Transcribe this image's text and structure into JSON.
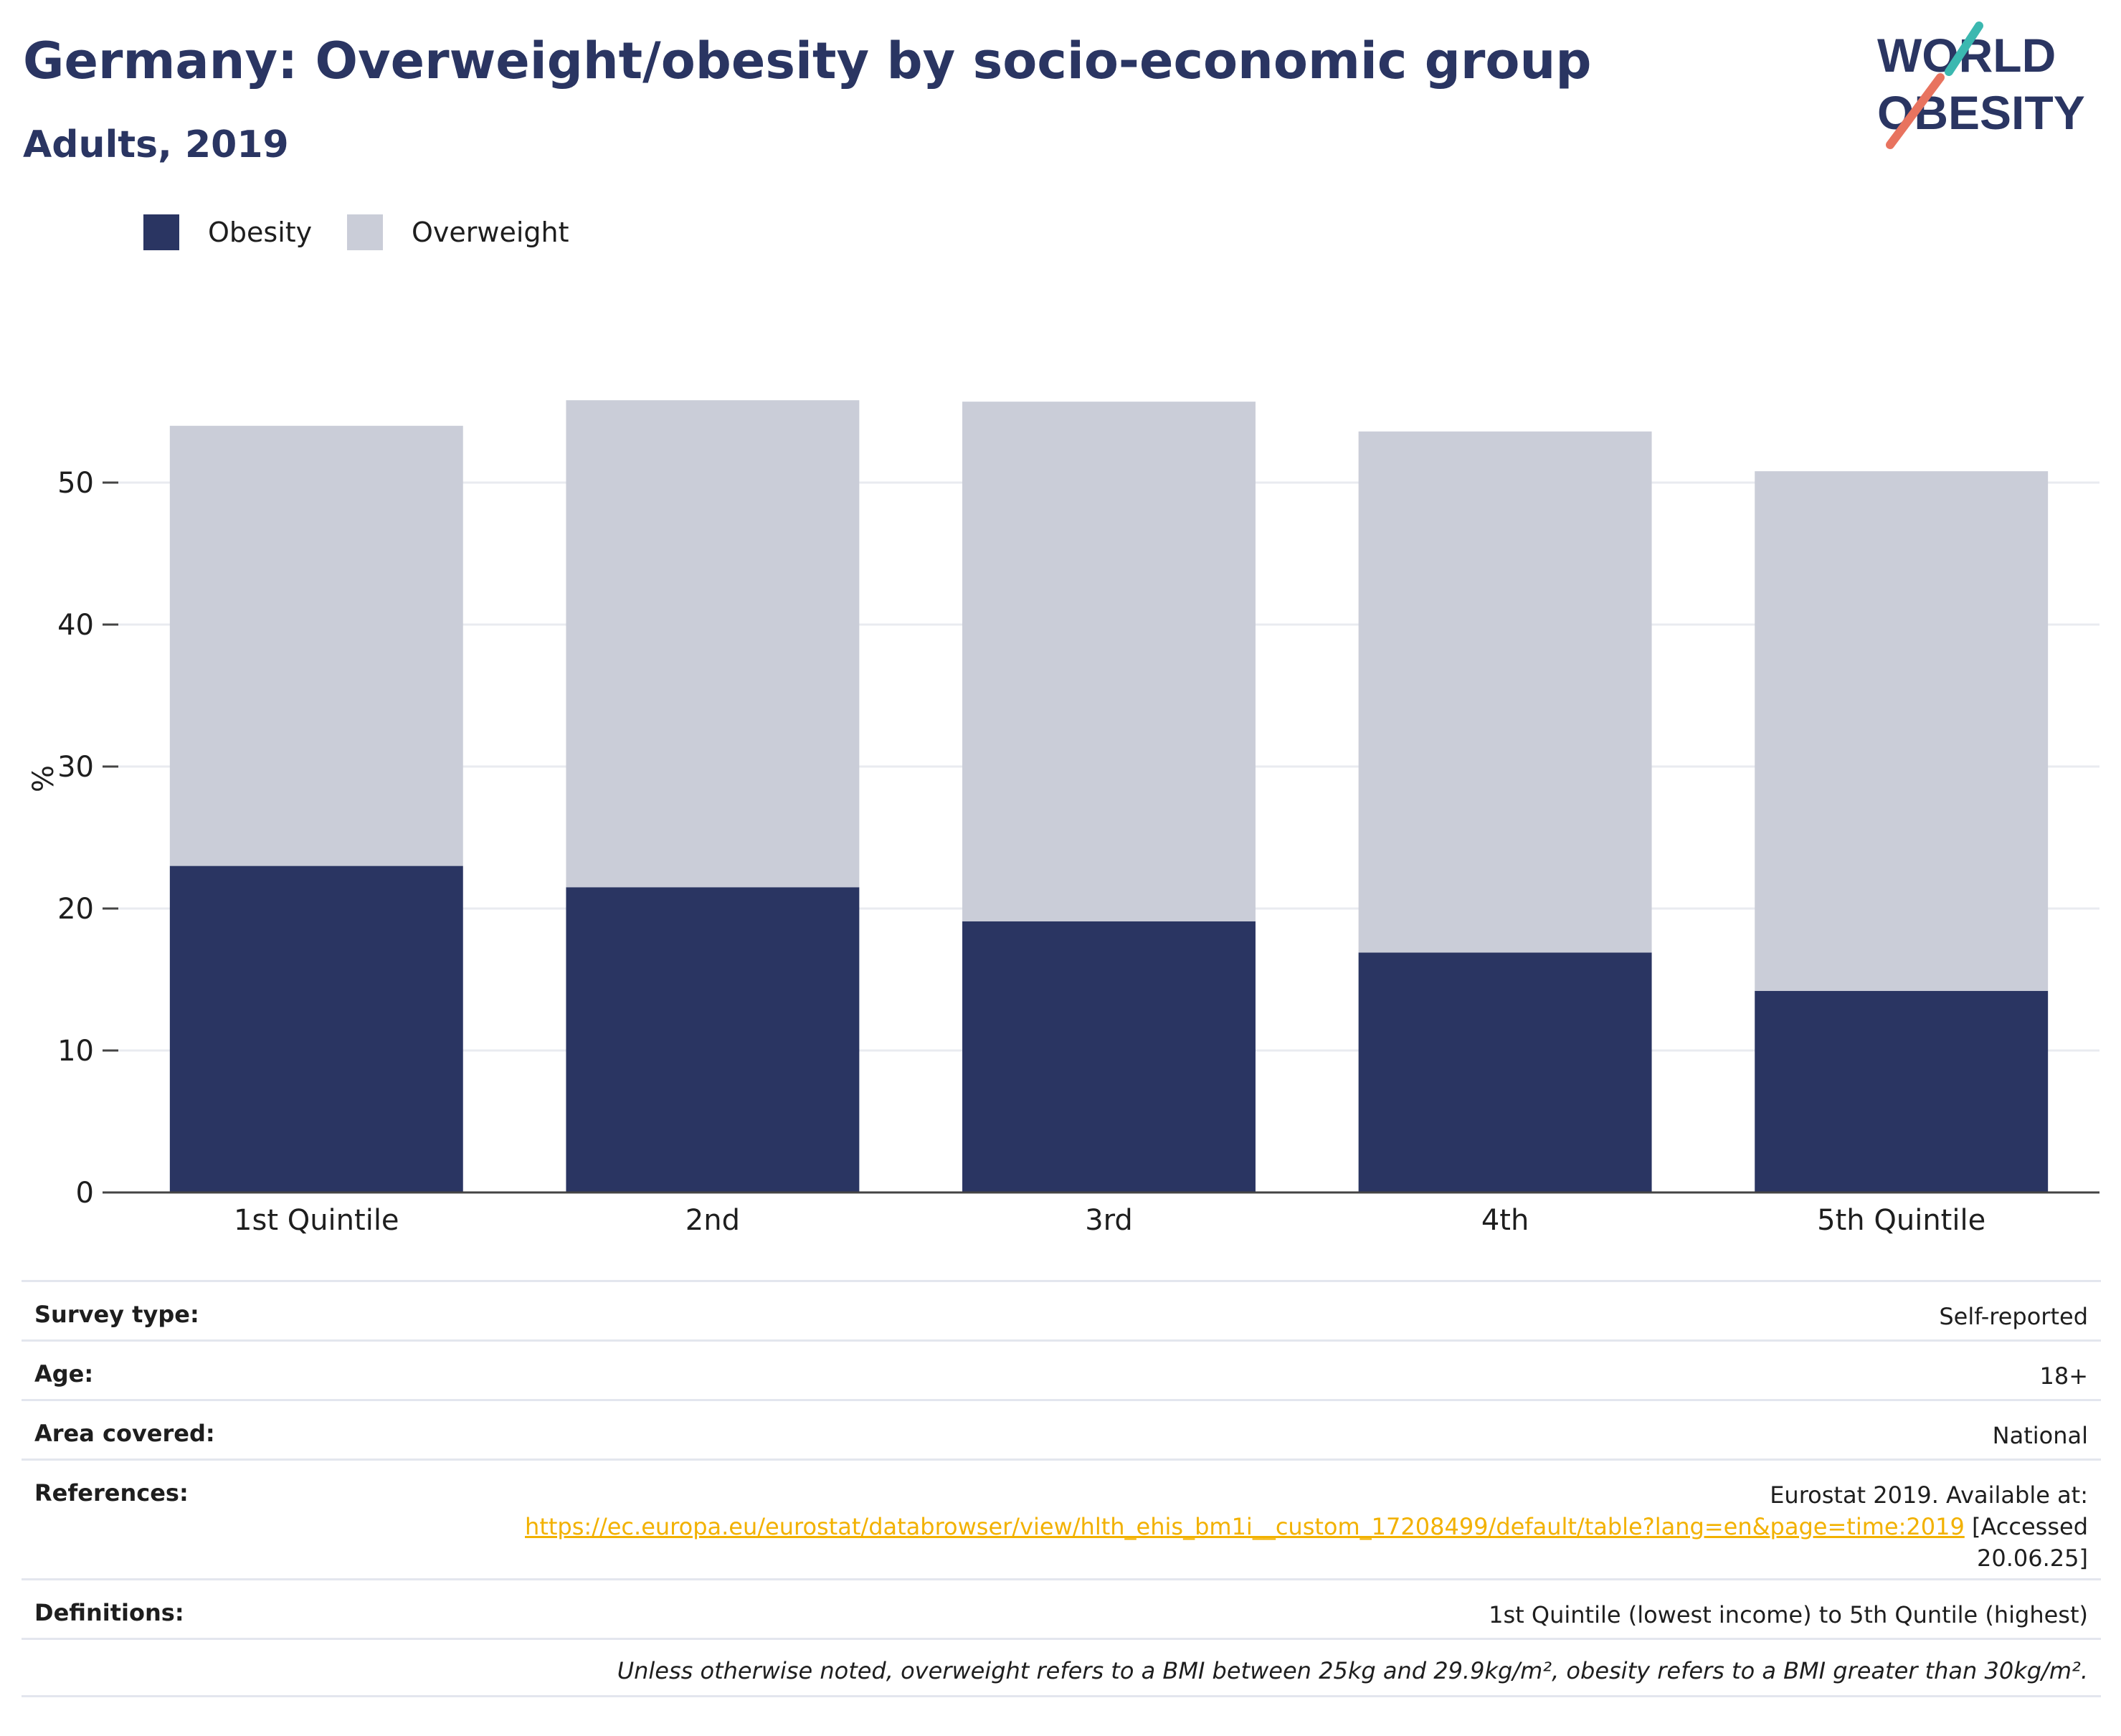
{
  "header": {
    "title": "Germany: Overweight/obesity by socio-economic group",
    "subtitle": "Adults, 2019"
  },
  "logo": {
    "line1": "WORLD",
    "line2": "OBESITY",
    "accent_teal": "#3bb8b0",
    "accent_coral": "#e8735f"
  },
  "colors": {
    "obesity": "#2a3562",
    "overweight": "#cacdd8",
    "link": "#f2b100",
    "grid": "#e9ebf0"
  },
  "chart_data": {
    "type": "bar",
    "stacked": true,
    "categories": [
      "1st Quintile",
      "2nd",
      "3rd",
      "4th",
      "5th Quintile"
    ],
    "series": [
      {
        "name": "Obesity",
        "color": "#2a3562",
        "values": [
          23.0,
          21.5,
          19.1,
          16.9,
          14.2
        ]
      },
      {
        "name": "Overweight",
        "color": "#cacdd8",
        "values": [
          31.0,
          34.3,
          36.6,
          36.7,
          36.6
        ]
      }
    ],
    "ylabel": "%",
    "xlabel": "",
    "ylim": [
      0,
      60
    ],
    "yticks": [
      0,
      10,
      20,
      30,
      40,
      50
    ],
    "grid": true,
    "legend_position": "top-left"
  },
  "info": {
    "survey_type_label": "Survey type:",
    "survey_type_value": "Self-reported",
    "age_label": "Age:",
    "age_value": "18+",
    "area_label": "Area covered:",
    "area_value": "National",
    "references_label": "References:",
    "references_text": "Eurostat 2019. Available at:",
    "references_link": "https://ec.europa.eu/eurostat/databrowser/view/hlth_ehis_bm1i__custom_17208499/default/table?lang=en&page=time:2019",
    "references_accessed": "[Accessed",
    "references_date": "20.06.25]",
    "definitions_label": "Definitions:",
    "definitions_value": "1st Quintile (lowest income) to 5th Quntile (highest)",
    "footnote": "Unless otherwise noted, overweight refers to a BMI between 25kg and 29.9kg/m², obesity refers to a BMI greater than 30kg/m²."
  }
}
